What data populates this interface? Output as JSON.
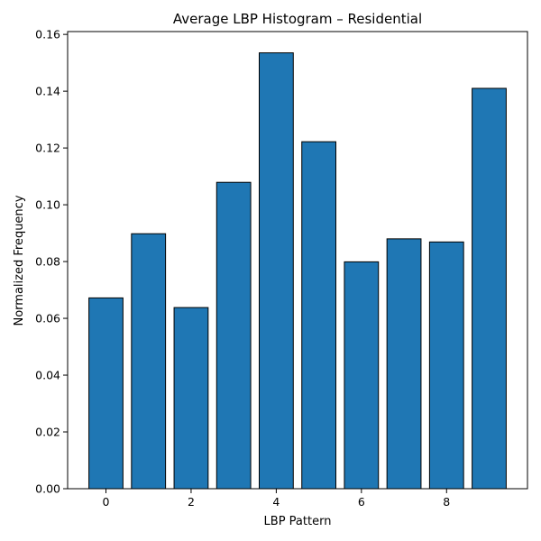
{
  "chart_data": {
    "type": "bar",
    "title": "Average LBP Histogram – Residential",
    "xlabel": "LBP Pattern",
    "ylabel": "Normalized Frequency",
    "x": [
      0,
      1,
      2,
      3,
      4,
      5,
      6,
      7,
      8,
      9
    ],
    "values": [
      0.0672,
      0.0898,
      0.0638,
      0.1079,
      0.1535,
      0.1222,
      0.0799,
      0.088,
      0.0869,
      0.141
    ],
    "xlim": [
      -0.9,
      9.9
    ],
    "ylim": [
      0,
      0.161
    ],
    "xticks": [
      0,
      2,
      4,
      6,
      8
    ],
    "yticks": [
      0.0,
      0.02,
      0.04,
      0.06,
      0.08,
      0.1,
      0.12,
      0.14,
      0.16
    ],
    "ytick_labels": [
      "0.00",
      "0.02",
      "0.04",
      "0.06",
      "0.08",
      "0.10",
      "0.12",
      "0.14",
      "0.16"
    ],
    "bar_color": "#1f77b4",
    "edge_color": "#000000",
    "grid": false,
    "legend": "none"
  }
}
